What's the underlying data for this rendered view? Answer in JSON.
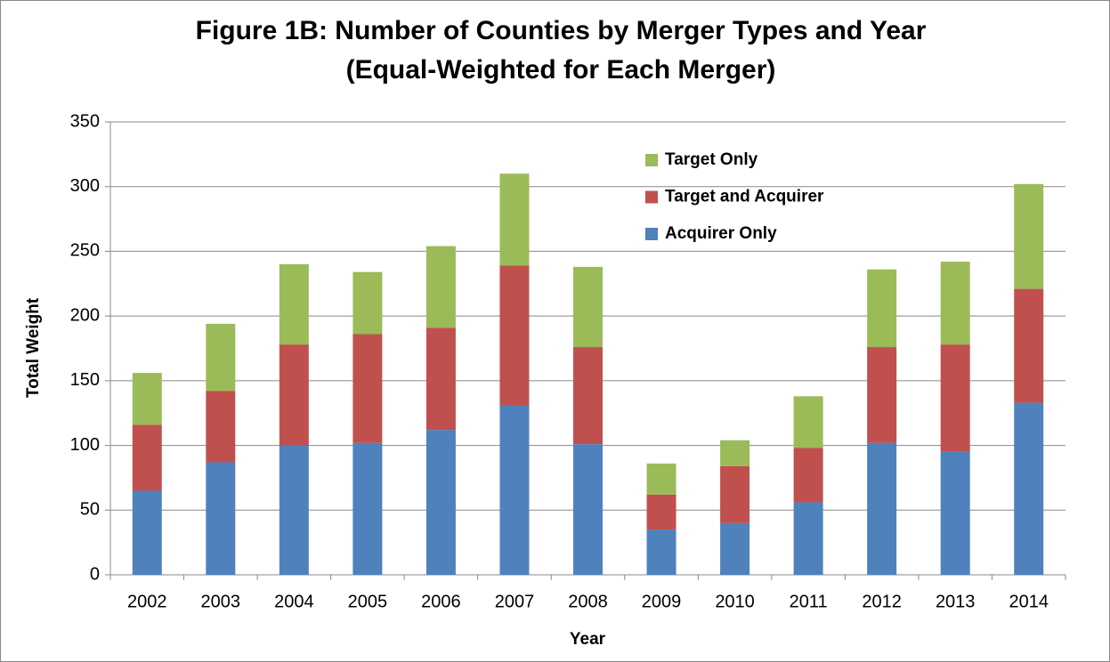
{
  "chart_data": {
    "type": "stacked_bar",
    "title": "Figure 1B: Number of Counties by Merger Types and Year",
    "subtitle": "(Equal-Weighted for Each Merger)",
    "x_label": "Year",
    "y_label": "Total Weight",
    "categories": [
      "2002",
      "2003",
      "2004",
      "2005",
      "2006",
      "2007",
      "2008",
      "2009",
      "2010",
      "2011",
      "2012",
      "2013",
      "2014"
    ],
    "series": [
      {
        "name": "Acquirer Only",
        "color": "#4f81bd",
        "values": [
          65,
          87,
          100,
          102,
          112,
          131,
          101,
          35,
          40,
          56,
          102,
          95,
          133
        ]
      },
      {
        "name": "Target and Acquirer",
        "color": "#c0504d",
        "values": [
          51,
          55,
          78,
          84,
          79,
          108,
          75,
          27,
          44,
          42,
          74,
          83,
          88
        ]
      },
      {
        "name": "Target Only",
        "color": "#9bbb59",
        "values": [
          40,
          52,
          62,
          48,
          63,
          71,
          62,
          24,
          20,
          40,
          60,
          64,
          81
        ]
      }
    ],
    "ylim": [
      0,
      350
    ],
    "yticks": [
      0,
      50,
      100,
      150,
      200,
      250,
      300,
      350
    ],
    "grid": true,
    "legend": "top-center"
  }
}
